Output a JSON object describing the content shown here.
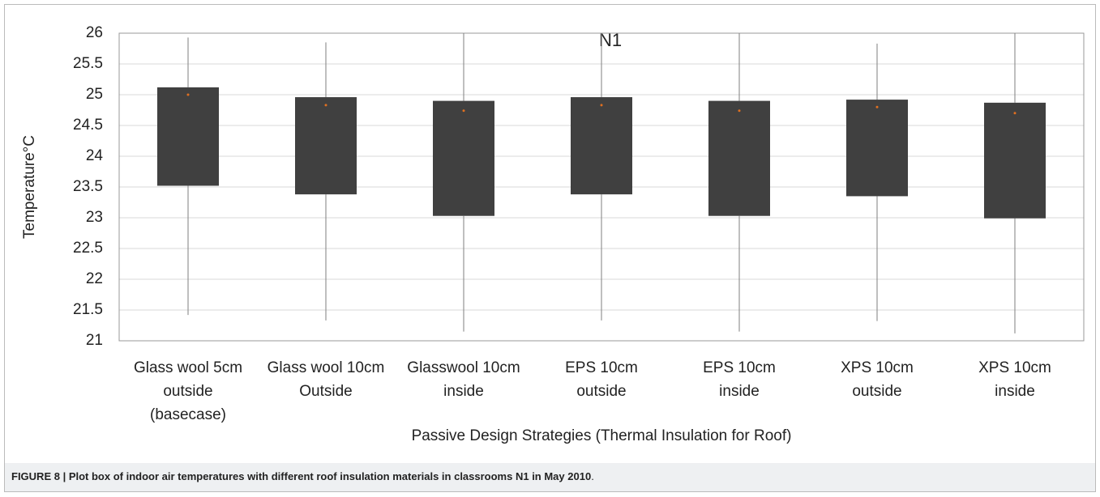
{
  "chart_data": {
    "type": "box",
    "title": "N1",
    "y_label": "Temperature°C",
    "x_label": "Passive Design Strategies (Thermal Insulation for Roof)",
    "caption": "FIGURE 8 | Plot box of indoor air temperatures with different roof insulation materials in classrooms N1 in May 2010",
    "caption_end": ".",
    "categories": [
      [
        "Glass wool 5cm",
        "outside",
        "(basecase)"
      ],
      [
        "Glass wool 10cm",
        "Outside"
      ],
      [
        "Glasswool 10cm",
        "inside"
      ],
      [
        "EPS 10cm",
        "outside"
      ],
      [
        "EPS 10cm",
        "inside"
      ],
      [
        "XPS 10cm",
        "outside"
      ],
      [
        "XPS 10cm",
        "inside"
      ]
    ],
    "min": [
      21.42,
      21.33,
      21.15,
      21.33,
      21.15,
      21.32,
      21.12
    ],
    "q1": [
      23.52,
      23.38,
      23.03,
      23.38,
      23.03,
      23.35,
      22.99
    ],
    "q3": [
      25.12,
      24.96,
      24.9,
      24.96,
      24.9,
      24.92,
      24.87
    ],
    "max": [
      25.93,
      25.85,
      26,
      26,
      26,
      25.83,
      26
    ],
    "mean": [
      25.0,
      24.83,
      24.74,
      24.83,
      24.74,
      24.8,
      24.7
    ],
    "color": "#404040",
    "whisker_color": "#7f7f7f",
    "mean_color": "#e07020",
    "ylim": [
      21,
      26
    ],
    "yticks": [
      21,
      21.5,
      22,
      22.5,
      23,
      23.5,
      24,
      24.5,
      25,
      25.5,
      26
    ],
    "grid": true
  }
}
